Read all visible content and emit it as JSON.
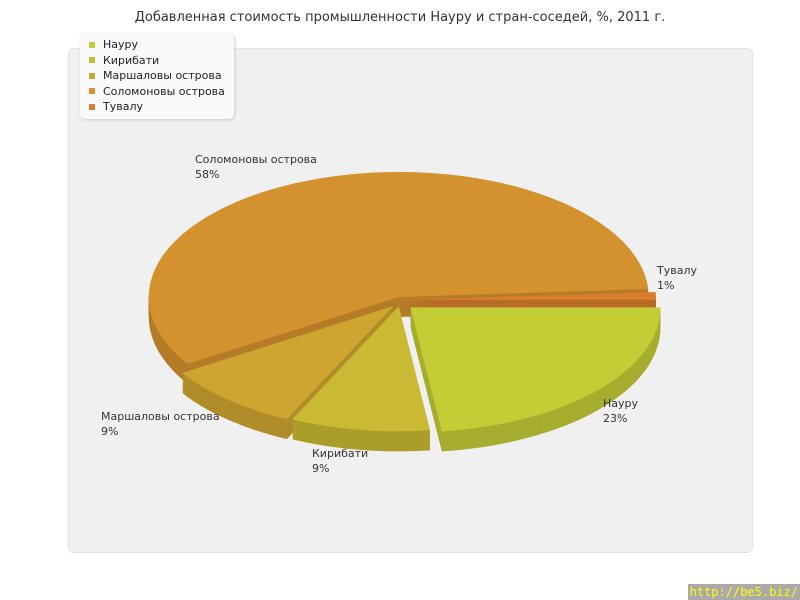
{
  "chart_data": {
    "type": "pie",
    "title": "Добавленная стоимость промышленности Науру и стран-соседей, %, 2011 г.",
    "legend_placement": "top-left",
    "slices": [
      {
        "label": "Науру",
        "value": 23,
        "value_label": "23%",
        "color": "#c4cc36"
      },
      {
        "label": "Кирибати",
        "value": 9,
        "value_label": "9%",
        "color": "#c9b933"
      },
      {
        "label": "Маршаловы острова",
        "value": 9,
        "value_label": "9%",
        "color": "#cfa531"
      },
      {
        "label": "Соломоновы острова",
        "value": 58,
        "value_label": "58%",
        "color": "#d4922f"
      },
      {
        "label": "Тувалу",
        "value": 1,
        "value_label": "1%",
        "color": "#d97e2c"
      }
    ]
  },
  "watermark": "http://be5.biz/"
}
